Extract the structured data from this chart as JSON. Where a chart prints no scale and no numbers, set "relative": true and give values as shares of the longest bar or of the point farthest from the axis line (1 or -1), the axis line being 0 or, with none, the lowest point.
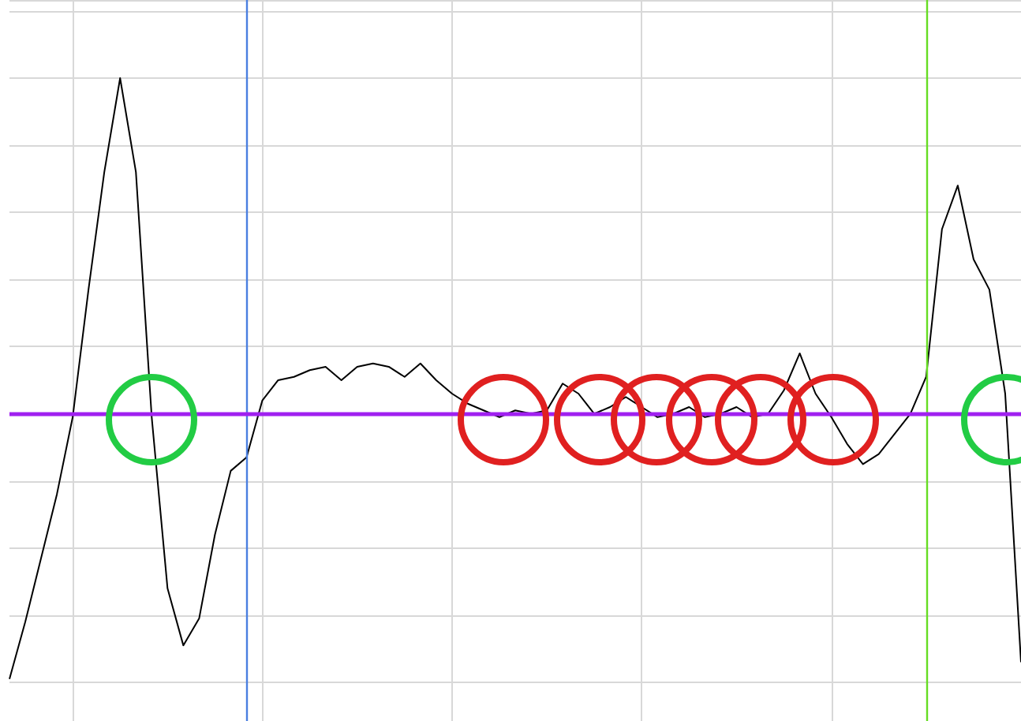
{
  "chart_data": {
    "type": "line",
    "relative": true,
    "tick_labels": false,
    "grid": true,
    "marker": "none",
    "line_style": "solid",
    "categories": [
      null,
      null,
      null,
      null,
      null,
      null,
      null,
      null,
      null,
      null,
      null,
      null,
      null,
      null,
      null,
      null,
      null,
      null,
      null,
      null,
      null,
      null,
      null,
      null,
      null,
      null,
      null,
      null,
      null,
      null,
      null,
      null,
      null,
      null,
      null,
      null,
      null,
      null,
      null,
      null,
      null,
      null,
      null,
      null,
      null,
      null,
      null,
      null,
      null,
      null,
      null,
      null,
      null,
      null,
      null,
      null,
      null,
      null,
      null,
      null,
      null,
      null,
      null,
      null,
      null
    ],
    "series": [
      {
        "color": "#000000",
        "values": [
          -0.79,
          -0.62,
          -0.43,
          -0.24,
          -0.01,
          0.37,
          0.72,
          1.0,
          0.72,
          -0.01,
          -0.52,
          -0.69,
          -0.61,
          -0.36,
          -0.17,
          -0.13,
          0.04,
          0.1,
          0.11,
          0.13,
          0.14,
          0.1,
          0.14,
          0.15,
          0.14,
          0.11,
          0.15,
          0.1,
          0.06,
          0.03,
          0.01,
          -0.01,
          0.01,
          0.0,
          0.01,
          0.09,
          0.06,
          0.0,
          0.02,
          0.05,
          0.02,
          -0.01,
          0.0,
          0.02,
          -0.01,
          0.0,
          0.02,
          -0.01,
          0.0,
          0.07,
          0.18,
          0.06,
          -0.01,
          -0.09,
          -0.15,
          -0.12,
          -0.06,
          0.0,
          0.11,
          0.55,
          0.68,
          0.46,
          0.37,
          0.06,
          -0.74
        ]
      }
    ],
    "ref_lines": [
      {
        "axis": "y",
        "value": 0,
        "color": "#a020f0"
      }
    ]
  }
}
